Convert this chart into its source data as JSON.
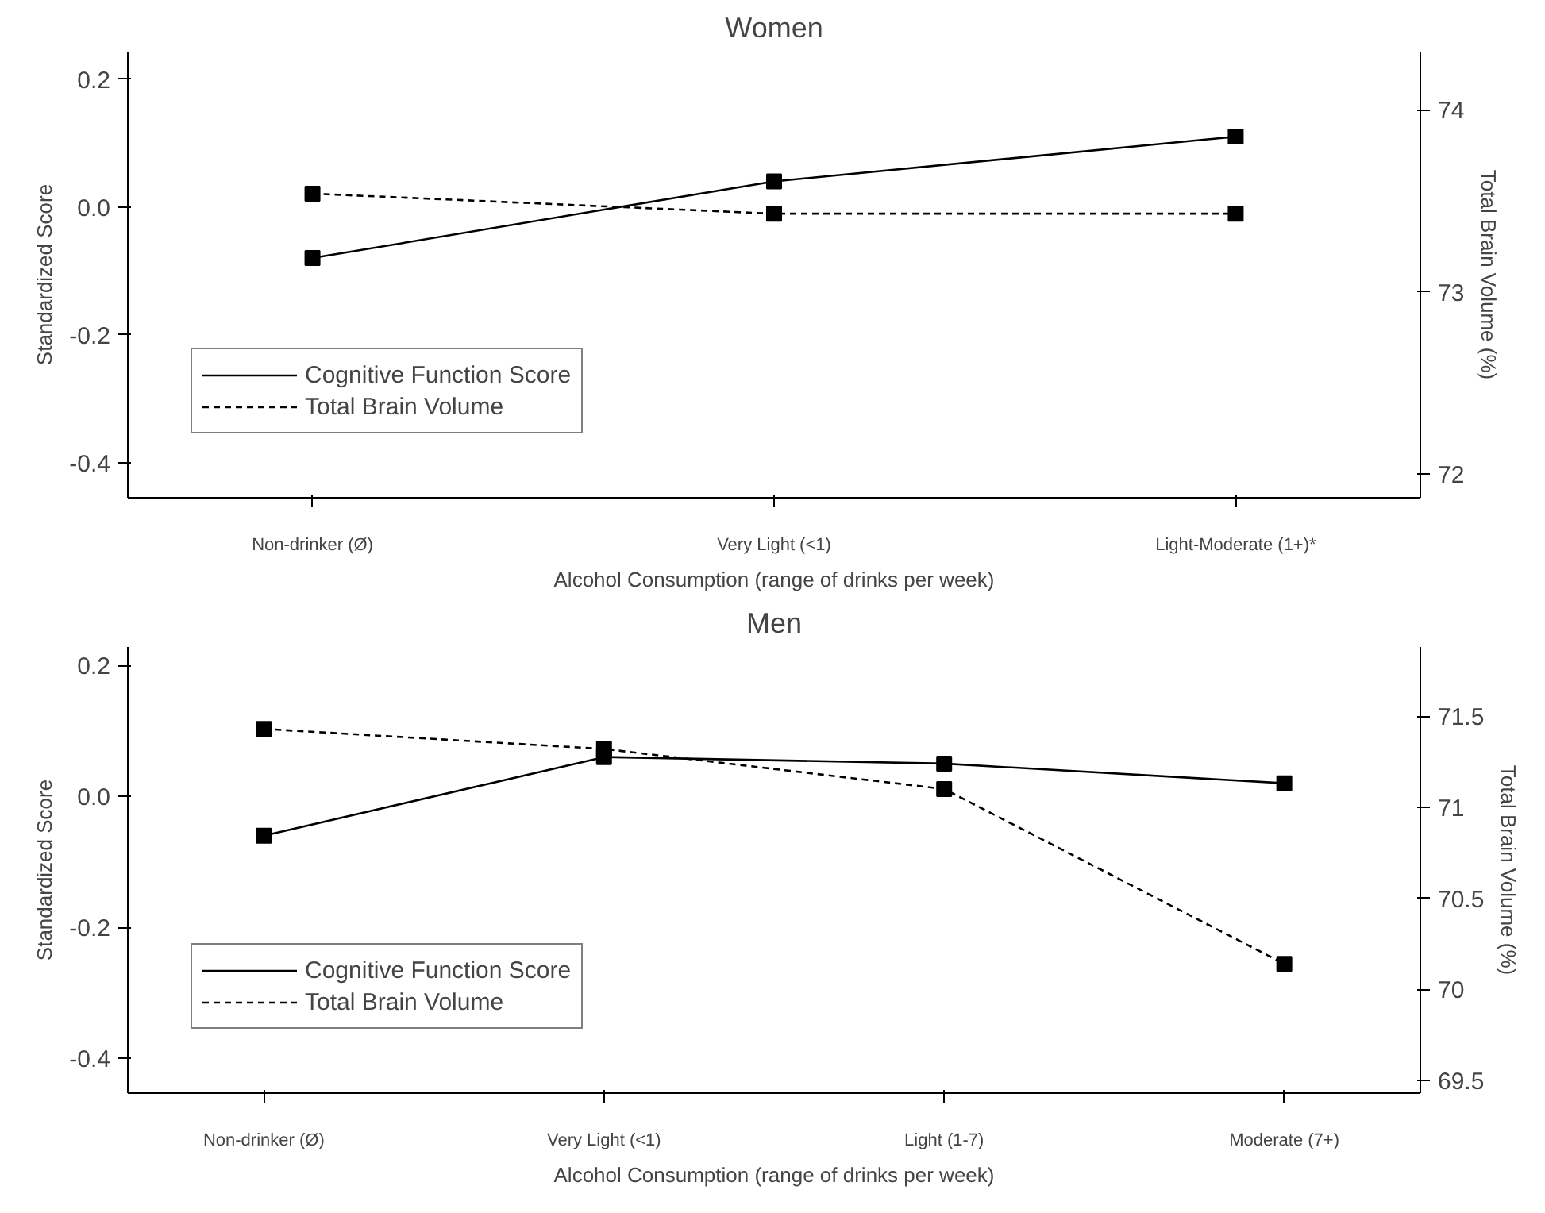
{
  "chart_data": [
    {
      "type": "line",
      "title": "Women",
      "xlabel": "Alcohol Consumption (range of drinks per week)",
      "ylabel": "Standardized Score",
      "y2label": "Total Brain Volume (%)",
      "categories": [
        "Non-drinker (Ø)",
        "Very Light (<1)",
        "Light-Moderate (1+)*"
      ],
      "ylim": [
        -0.455,
        0.243
      ],
      "yticks": [
        -0.4,
        -0.2,
        {
          "value": 0,
          "label": "0.0"
        },
        0.2
      ],
      "y2lim": [
        71.87,
        74.32
      ],
      "y2ticks": [
        72,
        73,
        74
      ],
      "marker": "square",
      "grid": false,
      "legend": "bottom left",
      "series": [
        {
          "name": "Cognitive Function Score",
          "color": "#000000",
          "line_style": "solid",
          "values": [
            -0.08,
            0.04,
            0.11
          ]
        },
        {
          "name": "Total Brain Volume",
          "color": "#000000",
          "line_style": "dashed",
          "axis": "y2",
          "values": [
            73.54,
            73.43,
            73.43
          ]
        }
      ]
    },
    {
      "type": "line",
      "title": "Men",
      "xlabel": "Alcohol Consumption (range of drinks per week)",
      "ylabel": "Standardized Score",
      "y2label": "Total Brain Volume (%)",
      "categories": [
        "Non-drinker (Ø)",
        "Very Light (<1)",
        "Light (1-7)",
        "Moderate (7+)"
      ],
      "ylim": [
        -0.453,
        0.228
      ],
      "yticks": [
        -0.4,
        -0.2,
        {
          "value": 0,
          "label": "0.0"
        },
        0.2
      ],
      "y2lim": [
        69.43,
        71.88
      ],
      "y2ticks": [
        69.5,
        70,
        70.5,
        71,
        71.5
      ],
      "marker": "square",
      "grid": false,
      "legend": "bottom left",
      "series": [
        {
          "name": "Cognitive Function Score",
          "color": "#000000",
          "line_style": "solid",
          "values": [
            -0.06,
            0.06,
            0.05,
            0.02
          ]
        },
        {
          "name": "Total Brain Volume",
          "color": "#000000",
          "line_style": "dashed",
          "axis": "y2",
          "values": [
            71.43,
            71.32,
            71.1,
            70.14
          ]
        }
      ]
    }
  ]
}
